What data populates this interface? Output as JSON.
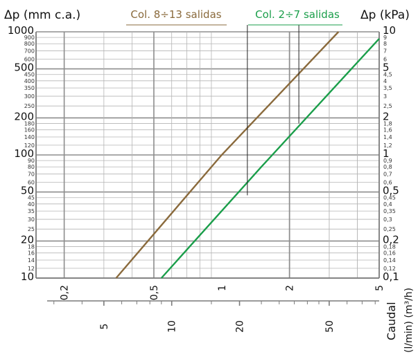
{
  "chart_data": {
    "type": "line",
    "scale": "log-log",
    "grid": true,
    "left_axis": {
      "label": "Δp (mm c.a.)",
      "range": [
        10,
        1000
      ],
      "major_labels": [
        "1000",
        "500",
        "200",
        "100",
        "50",
        "20",
        "10"
      ],
      "minor_labels": [
        "900",
        "800",
        "700",
        "600",
        "450",
        "400",
        "350",
        "300",
        "250",
        "180",
        "160",
        "140",
        "120",
        "90",
        "80",
        "70",
        "60",
        "45",
        "40",
        "35",
        "30",
        "25",
        "18",
        "16",
        "14",
        "12"
      ]
    },
    "right_axis": {
      "label": "Δp (kPa)",
      "range": [
        0.1,
        10
      ],
      "major_labels": [
        "10",
        "5",
        "2",
        "1",
        "0,5",
        "0,2",
        "0,1"
      ],
      "minor_labels": [
        "9",
        "8",
        "7",
        "6",
        "4,5",
        "4",
        "3,5",
        "3",
        "2,5",
        "1,8",
        "1,6",
        "1,4",
        "1,2",
        "0,9",
        "0,8",
        "0,7",
        "0,6",
        "0,45",
        "0,4",
        "0,35",
        "0,3",
        "0,25",
        "0,18",
        "0,16",
        "0,14",
        "0,12"
      ]
    },
    "x_axis_m3h": {
      "range": [
        0.15,
        5
      ],
      "tick_labels": [
        "0,2",
        "0,5",
        "1",
        "2",
        "5"
      ]
    },
    "x_axis_lmin": {
      "tick_labels": [
        "5",
        "10",
        "20",
        "50"
      ]
    },
    "x_title": "Caudal",
    "x_units": "(l/min) (m³/h)",
    "series": [
      {
        "name": "Col. 8÷13 salidas",
        "color": "#8a6a3c",
        "points": [
          [
            0.34,
            10
          ],
          [
            1.0,
            100
          ],
          [
            3.3,
            1000
          ]
        ]
      },
      {
        "name": "Col. 2÷7 salidas",
        "color": "#1a9e4a",
        "points": [
          [
            0.54,
            10
          ],
          [
            1.5,
            80
          ],
          [
            5.0,
            880
          ]
        ]
      }
    ],
    "annotations": [
      {
        "series": 0,
        "at": [
          1.3,
          47
        ]
      },
      {
        "series": 1,
        "at": [
          2.2,
          180
        ]
      }
    ]
  }
}
